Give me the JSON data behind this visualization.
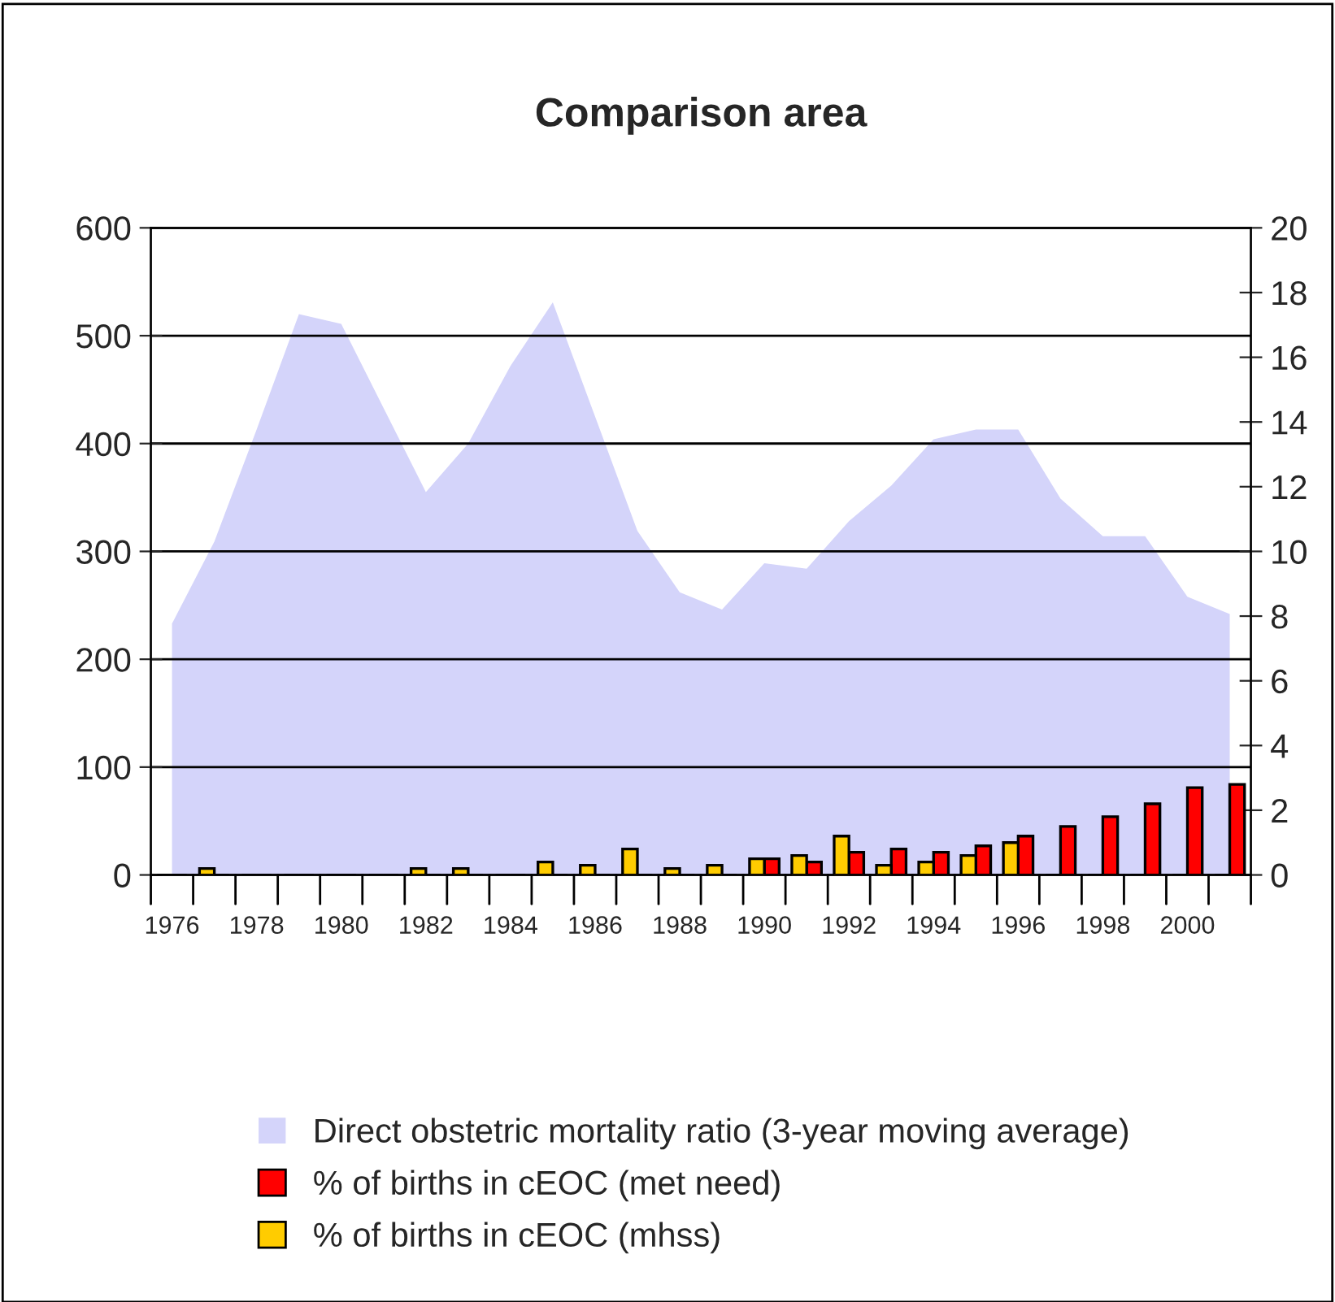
{
  "chart_data": {
    "type": "bar",
    "title": "Comparison area",
    "categories": [
      "1976",
      null,
      "1978",
      null,
      "1980",
      null,
      "1982",
      null,
      "1984",
      null,
      "1986",
      null,
      "1988",
      null,
      "1990",
      null,
      "1992",
      null,
      "1994",
      null,
      "1996",
      null,
      "1998",
      null,
      "2000",
      null
    ],
    "series": [
      {
        "name": "Direct obstetric mortality ratio (3-year moving average)",
        "type": "area",
        "color": "#d4d4fa",
        "values": [
          233,
          309,
          413,
          520,
          511,
          433,
          355,
          400,
          472,
          531,
          425,
          319,
          262,
          246,
          289,
          284,
          328,
          361,
          404,
          413,
          413,
          349,
          314,
          314,
          258,
          242
        ]
      },
      {
        "name": "% of births in cEOC (met need)",
        "axis": "y2",
        "color": "#ff0000",
        "values": [
          null,
          null,
          null,
          null,
          null,
          null,
          null,
          null,
          null,
          null,
          null,
          null,
          null,
          null,
          0.5,
          0.4,
          0.7,
          0.8,
          0.7,
          0.9,
          1.2,
          1.5,
          1.8,
          2.2,
          2.7,
          2.8
        ]
      },
      {
        "name": "% of births in cEOC (mhss)",
        "axis": "y2",
        "color": "#ffcc00",
        "values": [
          null,
          0.2,
          null,
          null,
          null,
          null,
          0.2,
          0.2,
          null,
          0.4,
          0.3,
          0.8,
          0.2,
          0.3,
          0.5,
          0.6,
          1.2,
          0.3,
          0.4,
          0.6,
          1.0,
          null,
          null,
          null,
          null,
          null
        ]
      }
    ],
    "ylim": [
      0,
      600
    ],
    "yticks": [
      0,
      100,
      200,
      300,
      400,
      500,
      600
    ],
    "y2lim": [
      0,
      20
    ],
    "y2ticks": [
      0,
      2,
      4,
      6,
      8,
      10,
      12,
      14,
      16,
      18,
      20
    ],
    "grid": "y",
    "legend": "bottom"
  }
}
